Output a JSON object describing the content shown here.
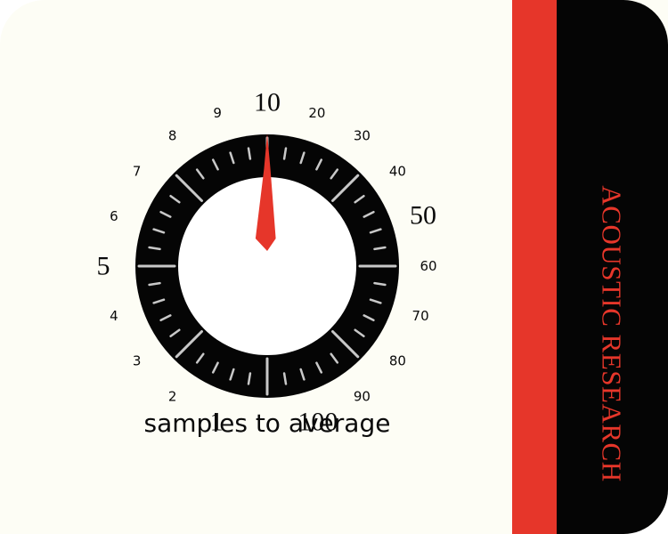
{
  "brand": "ACOUSTIC RESEARCH",
  "caption": "samples to average",
  "knob": {
    "selected_value": 10,
    "scale": [
      {
        "label": "1",
        "major": true
      },
      {
        "label": "2",
        "major": false
      },
      {
        "label": "3",
        "major": false
      },
      {
        "label": "4",
        "major": false
      },
      {
        "label": "5",
        "major": true
      },
      {
        "label": "6",
        "major": false
      },
      {
        "label": "7",
        "major": false
      },
      {
        "label": "8",
        "major": false
      },
      {
        "label": "9",
        "major": false
      },
      {
        "label": "10",
        "major": true
      },
      {
        "label": "20",
        "major": false
      },
      {
        "label": "30",
        "major": false
      },
      {
        "label": "40",
        "major": false
      },
      {
        "label": "50",
        "major": true
      },
      {
        "label": "60",
        "major": false
      },
      {
        "label": "70",
        "major": false
      },
      {
        "label": "80",
        "major": false
      },
      {
        "label": "90",
        "major": false
      },
      {
        "label": "100",
        "major": true
      }
    ]
  },
  "colors": {
    "panel": "#fdfdf5",
    "accent_red": "#e6362a",
    "dial_black": "#050505",
    "tick": "#c8c8c8"
  }
}
